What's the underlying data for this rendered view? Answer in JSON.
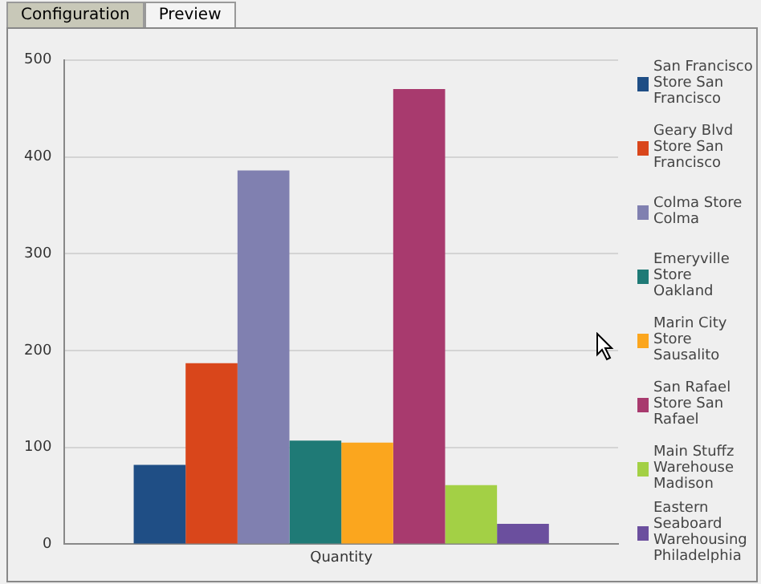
{
  "chart_data": {
    "type": "bar",
    "categories": [
      "Quantity"
    ],
    "series": [
      {
        "name": "San Francisco Store San Francisco",
        "color": "#1f4e85",
        "values": [
          82
        ]
      },
      {
        "name": "Geary Blvd Store San Francisco",
        "color": "#d9461b",
        "values": [
          187
        ]
      },
      {
        "name": "Colma Store Colma",
        "color": "#8080b0",
        "values": [
          386
        ]
      },
      {
        "name": "Emeryville Store Oakland",
        "color": "#1f7a76",
        "values": [
          107
        ]
      },
      {
        "name": "Marin City Store Sausalito",
        "color": "#fba61e",
        "values": [
          105
        ]
      },
      {
        "name": "San Rafael Store San Rafael",
        "color": "#a83a6e",
        "values": [
          470
        ]
      },
      {
        "name": "Main Stuffz Warehouse Madison",
        "color": "#a3d045",
        "values": [
          61
        ]
      },
      {
        "name": "Eastern Seaboard Warehousing Philadelphia",
        "color": "#6b4f9e",
        "values": [
          21
        ]
      }
    ],
    "ylim": [
      0,
      500
    ],
    "yticks": [
      0,
      100,
      200,
      300,
      400,
      500
    ],
    "grid": "y",
    "legend": "right",
    "annotations": [
      "Configuration",
      "Preview"
    ]
  }
}
